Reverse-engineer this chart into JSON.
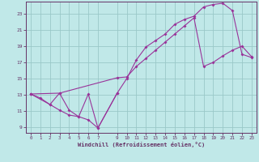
{
  "xlabel": "Windchill (Refroidissement éolien,°C)",
  "bg_color": "#c0e8e8",
  "line_color": "#993399",
  "grid_color": "#9ac8c8",
  "axis_color": "#663366",
  "xlim": [
    -0.5,
    23.5
  ],
  "ylim": [
    8.3,
    24.5
  ],
  "xtick_vals": [
    0,
    1,
    2,
    3,
    4,
    5,
    6,
    7,
    9,
    10,
    11,
    12,
    13,
    14,
    15,
    16,
    17,
    18,
    19,
    20,
    21,
    22,
    23
  ],
  "ytick_vals": [
    9,
    11,
    13,
    15,
    17,
    19,
    21,
    23
  ],
  "line1_x": [
    0,
    1,
    2,
    3,
    4,
    5,
    6,
    7,
    9,
    10,
    11,
    12,
    13,
    14,
    15,
    16,
    17,
    18,
    19,
    20,
    21,
    22,
    23
  ],
  "line1_y": [
    13.1,
    12.6,
    11.8,
    11.1,
    10.5,
    10.3,
    9.9,
    8.9,
    13.2,
    15.0,
    17.3,
    18.9,
    19.7,
    20.5,
    21.7,
    22.3,
    22.7,
    23.85,
    24.15,
    24.3,
    23.4,
    18.0,
    17.6
  ],
  "line2_x": [
    0,
    3,
    9,
    10,
    11,
    12,
    13,
    14,
    15,
    16,
    17,
    18,
    19,
    20,
    21,
    22,
    23
  ],
  "line2_y": [
    13.1,
    13.2,
    15.1,
    15.2,
    16.5,
    17.5,
    18.5,
    19.5,
    20.5,
    21.5,
    22.5,
    16.5,
    17.0,
    17.8,
    18.5,
    19.0,
    17.7
  ],
  "line3_x": [
    0,
    2,
    3,
    4,
    5,
    6,
    7,
    9
  ],
  "line3_y": [
    13.1,
    11.8,
    13.2,
    11.1,
    10.3,
    13.1,
    8.9,
    13.2
  ]
}
